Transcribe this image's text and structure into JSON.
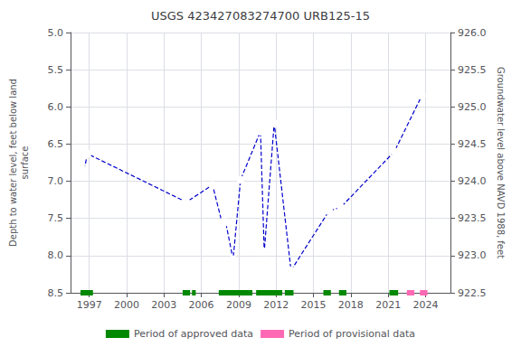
{
  "chart_data": {
    "type": "line",
    "title": "USGS 423427083274700 URB125-15",
    "ylabel": "Depth to water level, feet below land\nsurface",
    "y2label": "Groundwater level above NAVD 1988, feet",
    "xlim": [
      1995.5,
      2026.0
    ],
    "xticks": [
      1997,
      2000,
      2003,
      2006,
      2009,
      2012,
      2015,
      2018,
      2021,
      2024
    ],
    "ylim": [
      8.5,
      5.0
    ],
    "yticks": [
      {
        "value": 5.0,
        "label": "5.0"
      },
      5.5,
      {
        "value": 6.0,
        "label": "6.0"
      },
      6.5,
      {
        "value": 7.0,
        "label": "7.0"
      },
      7.5,
      {
        "value": 8.0,
        "label": "8.0"
      },
      8.5
    ],
    "y2lim": [
      922.5,
      926.0
    ],
    "y2ticks": [
      922.5,
      {
        "value": 923.0,
        "label": "923.0"
      },
      923.5,
      {
        "value": 924.0,
        "label": "924.0"
      },
      924.5,
      {
        "value": 925.0,
        "label": "925.0"
      },
      925.5,
      {
        "value": 926.0,
        "label": "926.0"
      }
    ],
    "grid": true,
    "legend": "bottom",
    "x": [
      1996.6,
      1996.85,
      2004.8,
      2006.9,
      2007.65,
      2007.95,
      2008.55,
      2009.15,
      2010.75,
      2011.05,
      2011.85,
      2013.2,
      2016.25,
      2017.2,
      2021.5,
      2023.7
    ],
    "series": [
      {
        "type": "line",
        "color": "#0000cc",
        "marker": "open-circle",
        "line_style": "dashed",
        "values": [
          6.85,
          6.63,
          7.28,
          7.05,
          7.55,
          7.55,
          8.05,
          6.98,
          6.33,
          7.95,
          6.22,
          8.2,
          7.4,
          7.35,
          6.6,
          5.85
        ]
      },
      {
        "type": "period",
        "name": "Period of approved data",
        "color": "#008800",
        "periods": [
          [
            1996.3,
            1997.3
          ],
          [
            2004.5,
            2005.1
          ],
          [
            2005.25,
            2005.55
          ],
          [
            2007.4,
            2010.1
          ],
          [
            2010.4,
            2012.5
          ],
          [
            2012.7,
            2013.4
          ],
          [
            2015.8,
            2016.4
          ],
          [
            2017.05,
            2017.65
          ],
          [
            2021.1,
            2021.8
          ]
        ]
      },
      {
        "type": "period",
        "name": "Period of provisional data",
        "color": "#ff69b4",
        "periods": [
          [
            2022.5,
            2023.1
          ],
          [
            2023.55,
            2024.15
          ]
        ]
      }
    ]
  }
}
